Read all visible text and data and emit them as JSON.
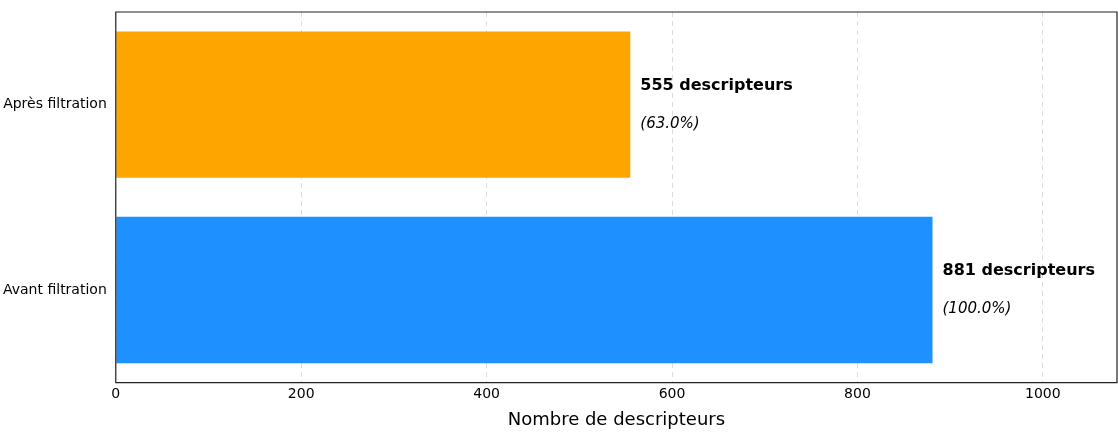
{
  "chart_data": {
    "type": "bar",
    "orientation": "horizontal",
    "xlabel": "Nombre de descripteurs",
    "categories": [
      "Après filtration",
      "Avant filtration"
    ],
    "values": [
      555,
      881
    ],
    "colors": [
      "#ffa500",
      "#1e90ff"
    ],
    "value_labels": [
      "555 descripteurs",
      "881 descripteurs"
    ],
    "annotations": [
      {
        "text": "(63.0%)",
        "x": 555,
        "y": "Après filtration"
      },
      {
        "text": "(100.0%)",
        "x": 881,
        "y": "Avant filtration"
      }
    ],
    "xlim": [
      0,
      1080
    ],
    "xticks": [
      0,
      200,
      400,
      600,
      800,
      1000
    ],
    "grid": "x"
  }
}
